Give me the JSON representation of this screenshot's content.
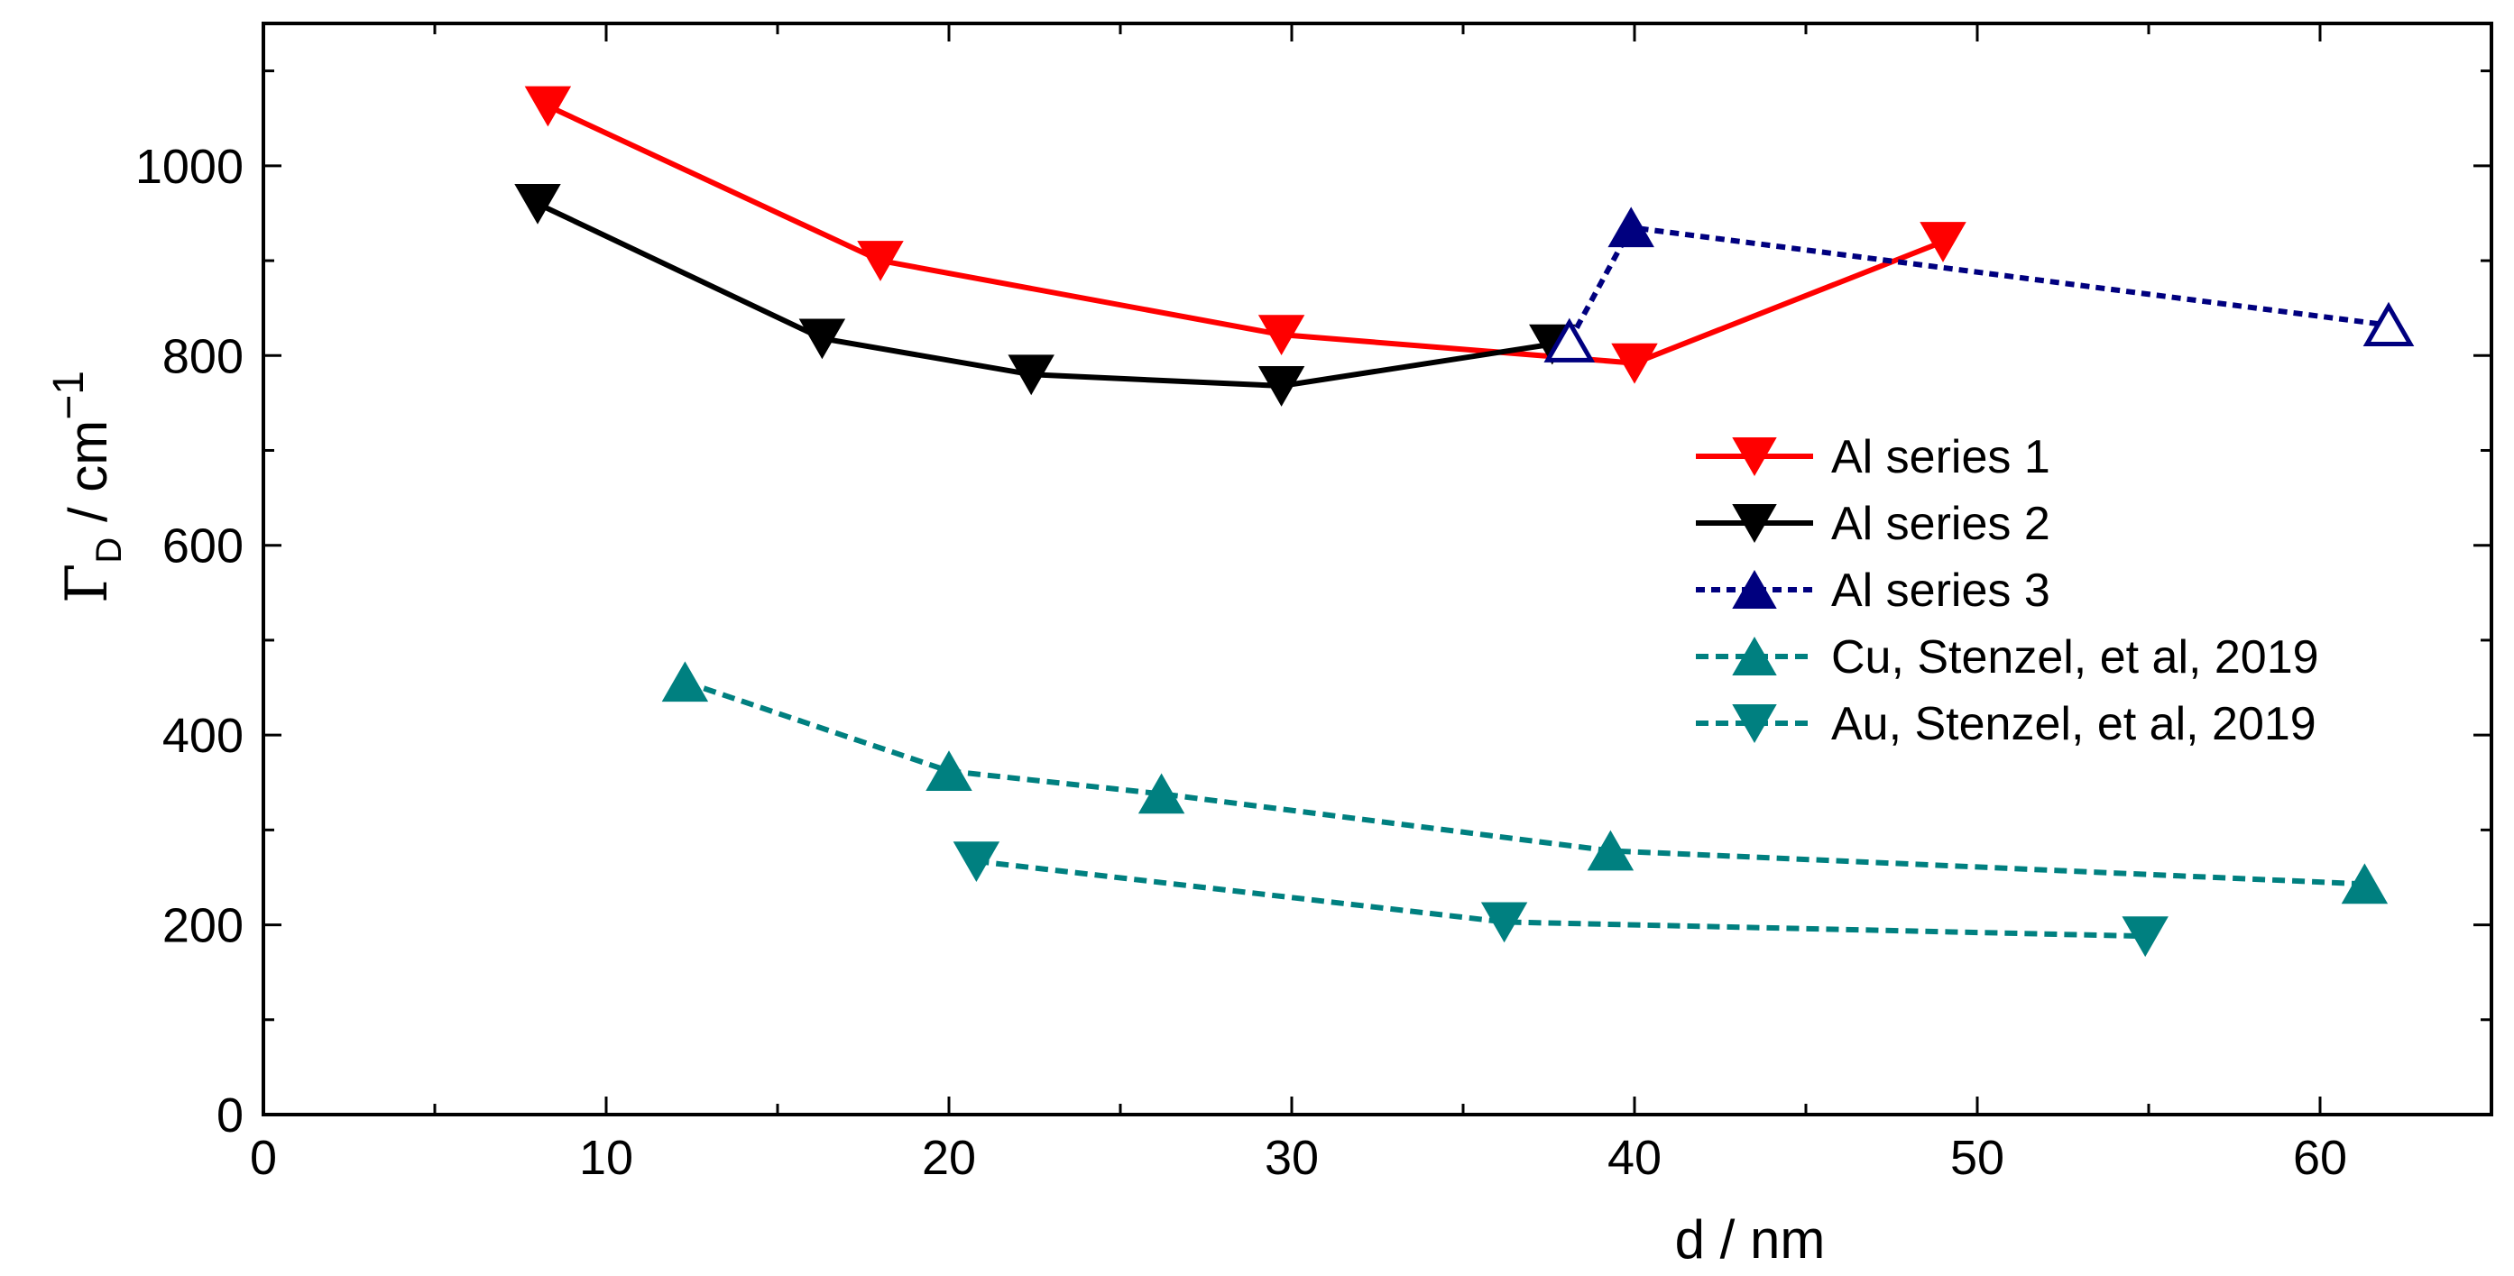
{
  "chart_data": {
    "type": "line",
    "title": "",
    "xlabel": "d / nm",
    "ylabel": {
      "symbol": "Γ",
      "subscript": "D",
      "unit": " / cm",
      "superscript": "−1"
    },
    "xlim": [
      0,
      65
    ],
    "ylim": [
      0,
      1150
    ],
    "xticks": [
      0,
      10,
      20,
      30,
      40,
      50,
      60
    ],
    "yticks": [
      0,
      200,
      400,
      600,
      800,
      1000
    ],
    "xtick_labels": [
      "0",
      "10",
      "20",
      "30",
      "40",
      "50",
      "60"
    ],
    "ytick_labels": [
      "0",
      "200",
      "400",
      "600",
      "800",
      "1000"
    ],
    "legend_position": "right-center",
    "series": [
      {
        "name": "Al series 1",
        "color": "#ff0000",
        "line": "solid",
        "marker": "triangle-down",
        "x": [
          8.3,
          18.0,
          29.7,
          40.0,
          49.0
        ],
        "y": [
          1063,
          900,
          822,
          792,
          920
        ],
        "filled": [
          true,
          true,
          true,
          true,
          true
        ]
      },
      {
        "name": "Al series 2",
        "color": "#000000",
        "line": "solid",
        "marker": "triangle-down",
        "x": [
          8.0,
          16.3,
          22.4,
          29.7,
          37.6
        ],
        "y": [
          960,
          818,
          780,
          768,
          812
        ],
        "filled": [
          true,
          true,
          true,
          true,
          true
        ]
      },
      {
        "name": "Al series 3",
        "color": "#00007f",
        "line": "dotted",
        "marker": "triangle-up",
        "x": [
          38.1,
          39.9,
          62.0
        ],
        "y": [
          815,
          935,
          832
        ],
        "filled": [
          false,
          true,
          false
        ]
      },
      {
        "name": "Cu, Stenzel, et al, 2019",
        "color": "#008080",
        "line": "dashed",
        "marker": "triangle-up",
        "x": [
          12.3,
          20.0,
          26.2,
          39.3,
          61.3
        ],
        "y": [
          456,
          362,
          338,
          278,
          243
        ],
        "filled": [
          true,
          true,
          true,
          true,
          true
        ]
      },
      {
        "name": "Au, Stenzel, et al, 2019",
        "color": "#008080",
        "line": "dashed",
        "marker": "triangle-down",
        "x": [
          20.8,
          36.2,
          54.9
        ],
        "y": [
          267,
          203,
          188
        ],
        "filled": [
          true,
          true,
          true
        ]
      }
    ]
  }
}
